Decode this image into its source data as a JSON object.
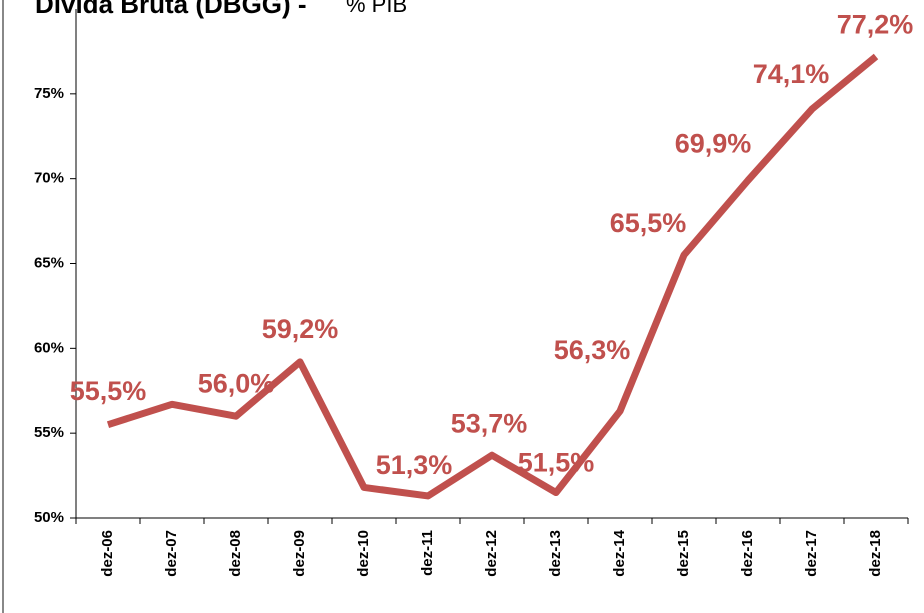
{
  "chart_data": {
    "type": "line",
    "title": "Dívida Bruta (DBGG) -",
    "subtitle": "% PIB",
    "categories": [
      "dez-06",
      "dez-07",
      "dez-08",
      "dez-09",
      "dez-10",
      "dez-11",
      "dez-12",
      "dez-13",
      "dez-14",
      "dez-15",
      "dez-16",
      "dez-17",
      "dez-18"
    ],
    "series": [
      {
        "name": "Dívida Bruta (DBGG)",
        "color": "#c0504d",
        "values": [
          55.5,
          56.7,
          56.0,
          59.2,
          51.8,
          51.3,
          53.7,
          51.5,
          56.3,
          65.5,
          69.9,
          74.1,
          77.2
        ],
        "value_labels": [
          "55,5%",
          null,
          "56,0%",
          "59,2%",
          null,
          "51,3%",
          "53,7%",
          "51,5%",
          "56,3%",
          "65,5%",
          "69,9%",
          "74,1%",
          "77,2%"
        ]
      }
    ],
    "ylim": [
      50,
      80
    ],
    "yticks": [
      {
        "value": 50,
        "label": "50%"
      },
      {
        "value": 55,
        "label": "55%"
      },
      {
        "value": 60,
        "label": "60%"
      },
      {
        "value": 65,
        "label": "65%"
      },
      {
        "value": 70,
        "label": "70%"
      },
      {
        "value": 75,
        "label": "75%"
      }
    ],
    "grid": false
  }
}
